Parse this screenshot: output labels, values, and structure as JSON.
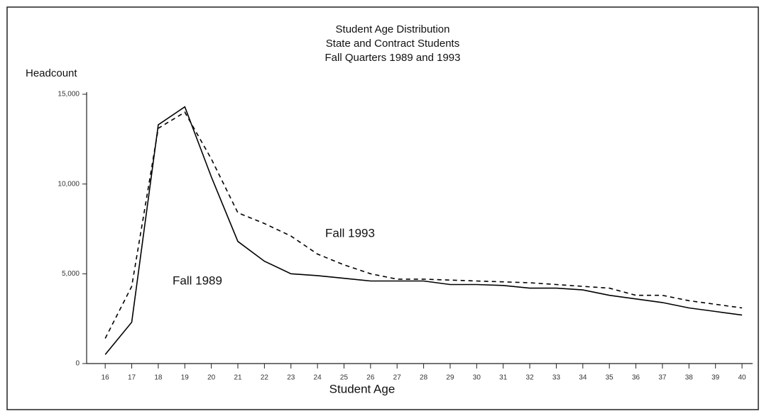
{
  "chart_data": {
    "type": "line",
    "title": "Student Age Distribution",
    "subtitle": [
      "State and Contract Students",
      "Fall Quarters 1989 and 1993"
    ],
    "y_label": "Headcount",
    "x_label": "Student Age",
    "x": [
      16,
      17,
      18,
      19,
      20,
      21,
      22,
      23,
      24,
      25,
      26,
      27,
      28,
      29,
      30,
      31,
      32,
      33,
      34,
      35,
      36,
      37,
      38,
      39,
      40
    ],
    "xlim": [
      15.3,
      40.4
    ],
    "xticks": [
      16,
      17,
      18,
      19,
      20,
      21,
      22,
      23,
      24,
      25,
      26,
      27,
      28,
      29,
      30,
      31,
      32,
      33,
      34,
      35,
      36,
      37,
      38,
      39,
      40
    ],
    "ylim": [
      0,
      15000
    ],
    "yticks": [
      0,
      {
        "value": 5000,
        "label": "5,000"
      },
      {
        "value": 10000,
        "label": "10,000"
      },
      {
        "value": 15000,
        "label": "15,000"
      }
    ],
    "series": [
      {
        "name": "Fall 1989",
        "color": "#000000",
        "style": "solid",
        "values": [
          500,
          2300,
          13300,
          14300,
          10400,
          6800,
          5700,
          5000,
          4900,
          4750,
          4600,
          4600,
          4600,
          4400,
          4400,
          4350,
          4200,
          4200,
          4100,
          3800,
          3600,
          3400,
          3100,
          2900,
          2700
        ]
      },
      {
        "name": "Fall 1993",
        "color": "#000000",
        "style": "dashed",
        "values": [
          1400,
          4300,
          13100,
          14000,
          11400,
          8400,
          7800,
          7100,
          6100,
          5500,
          5000,
          4700,
          4700,
          4650,
          4600,
          4550,
          4500,
          4400,
          4300,
          4200,
          3800,
          3800,
          3500,
          3300,
          3100
        ]
      }
    ]
  }
}
